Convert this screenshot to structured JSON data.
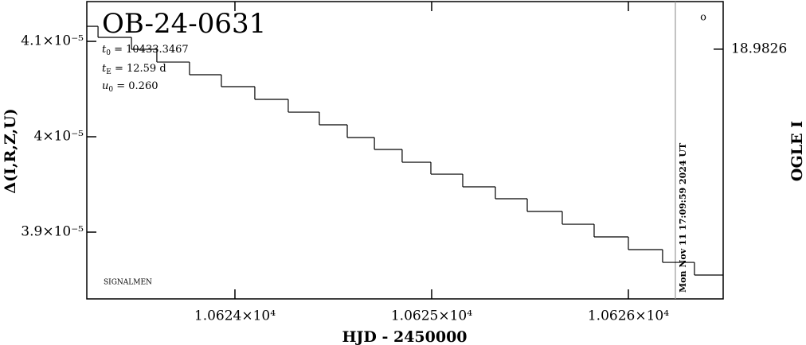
{
  "chart_data": {
    "type": "step",
    "title": "OB-24-0631",
    "parameters": [
      {
        "symbol": "t",
        "sub": "0",
        "text": " = 10433.3467"
      },
      {
        "symbol": "t",
        "sub": "E",
        "text": " = 12.59  d"
      },
      {
        "symbol": "u",
        "sub": "0",
        "text": " = 0.260"
      }
    ],
    "footer_note": "SIGNALMEN",
    "x_label": "HJD - 2450000",
    "y_label": "Δ(I,R,Z,U)",
    "y2_label": "OGLE I",
    "timestamp": {
      "x": 10626.239,
      "label": "Mon Nov 11 17:09:59 2024 UT"
    },
    "marker_label": "o",
    "color": "#000000",
    "x": [
      10623.247,
      10623.304,
      10623.474,
      10623.603,
      10623.769,
      10623.931,
      10624.101,
      10624.271,
      10624.429,
      10624.571,
      10624.709,
      10624.85,
      10624.996,
      10625.158,
      10625.324,
      10625.486,
      10625.664,
      10625.826,
      10626.0,
      10626.174,
      10626.336
    ],
    "values": [
      4.1158e-05,
      4.1042e-05,
      4.0917e-05,
      4.0783e-05,
      4.065e-05,
      4.0525e-05,
      4.0392e-05,
      4.0258e-05,
      4.0125e-05,
      3.9992e-05,
      3.9867e-05,
      3.9733e-05,
      3.9608e-05,
      3.9475e-05,
      3.935e-05,
      3.9217e-05,
      3.9083e-05,
      3.895e-05,
      3.8817e-05,
      3.8683e-05,
      3.855e-05
    ],
    "xlim": [
      10623.247,
      10626.482
    ],
    "xticks": [
      {
        "value": 10624,
        "label": "1.0624×10⁴"
      },
      {
        "value": 10625,
        "label": "1.0625×10⁴"
      },
      {
        "value": 10626,
        "label": "1.0626×10⁴"
      }
    ],
    "ylim": [
      3.83e-05,
      4.1417e-05
    ],
    "yticks": [
      {
        "value": 3.9e-05,
        "label": "3.9×10⁻⁵"
      },
      {
        "value": 4e-05,
        "label": "4×10⁻⁵"
      },
      {
        "value": 4.1e-05,
        "label": "4.1×10⁻⁵"
      }
    ],
    "y2lim": [
      18.99625,
      18.98
    ],
    "y2ticks": [
      18.9826
    ]
  }
}
